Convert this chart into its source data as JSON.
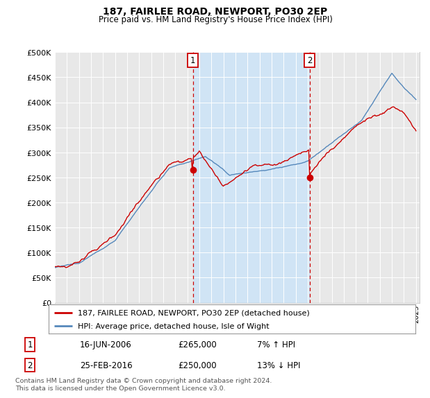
{
  "title": "187, FAIRLEE ROAD, NEWPORT, PO30 2EP",
  "subtitle": "Price paid vs. HM Land Registry's House Price Index (HPI)",
  "legend_label_red": "187, FAIRLEE ROAD, NEWPORT, PO30 2EP (detached house)",
  "legend_label_blue": "HPI: Average price, detached house, Isle of Wight",
  "annotation1_date": "16-JUN-2006",
  "annotation1_price": 265000,
  "annotation1_pct": "7% ↑ HPI",
  "annotation2_date": "25-FEB-2016",
  "annotation2_price": 250000,
  "annotation2_pct": "13% ↓ HPI",
  "footnote": "Contains HM Land Registry data © Crown copyright and database right 2024.\nThis data is licensed under the Open Government Licence v3.0.",
  "ymin": 0,
  "ymax": 500000,
  "red_color": "#cc0000",
  "blue_color": "#5588bb",
  "shade_color": "#d0e4f5",
  "bg_plot": "#f0f0f0",
  "bg_fig": "#ffffff",
  "grid_color": "#ffffff",
  "vline_color": "#cc0000"
}
